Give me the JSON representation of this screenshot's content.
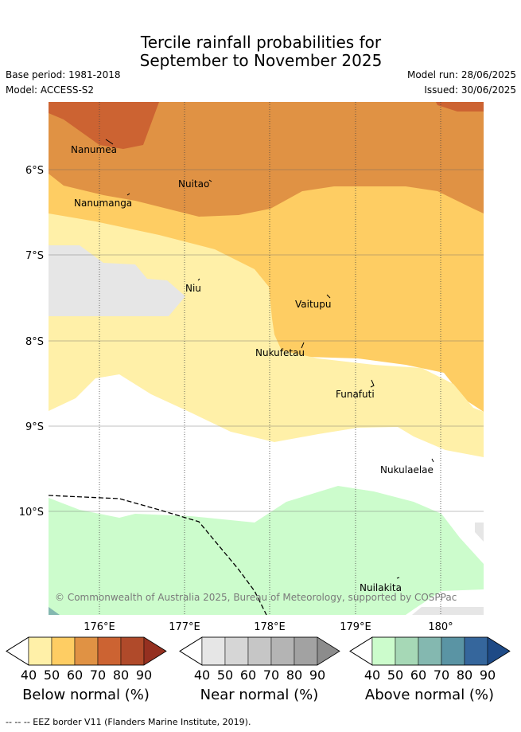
{
  "title": {
    "line1": "Tercile rainfall probabilities for",
    "line2": "September to November 2025"
  },
  "meta": {
    "base_period": "Base period: 1981-2018",
    "model": "Model: ACCESS-S2",
    "model_run": "Model run: 28/06/2025",
    "issued": "Issued: 30/06/2025"
  },
  "map": {
    "lat_labels": [
      "6°S",
      "7°S",
      "8°S",
      "9°S",
      "10°S"
    ],
    "lon_labels": [
      "176°E",
      "177°E",
      "178°E",
      "179°E",
      "180°"
    ],
    "places": [
      {
        "name": "Nanumea"
      },
      {
        "name": "Nuitao"
      },
      {
        "name": "Nanumanga"
      },
      {
        "name": "Niu"
      },
      {
        "name": "Vaitupu"
      },
      {
        "name": "Nukufetau"
      },
      {
        "name": "Funafuti"
      },
      {
        "name": "Nukulaelae"
      },
      {
        "name": "Nuilakita"
      }
    ],
    "copyright": "© Commonwealth of Australia 2025, Bureau of Meteorology, supported by COSPPac"
  },
  "legend": {
    "below": {
      "title": "Below normal (%)",
      "ticks": [
        "40",
        "50",
        "60",
        "70",
        "80",
        "90"
      ],
      "colors": [
        "#fff0a8",
        "#fecd63",
        "#e09244",
        "#cc6332",
        "#b04a2a",
        "#953020"
      ]
    },
    "near": {
      "title": "Near normal (%)",
      "ticks": [
        "40",
        "50",
        "60",
        "70",
        "80",
        "90"
      ],
      "colors": [
        "#e6e6e6",
        "#d6d6d6",
        "#c6c6c6",
        "#b4b4b4",
        "#a2a2a2",
        "#8c8c8c"
      ]
    },
    "above": {
      "title": "Above normal (%)",
      "ticks": [
        "40",
        "50",
        "60",
        "70",
        "80",
        "90"
      ],
      "colors": [
        "#ccfccc",
        "#a6d8b6",
        "#84b8b0",
        "#5a94a4",
        "#35669c",
        "#1e4a86"
      ]
    }
  },
  "footer": "--  --  -- EEZ border V11 (Flanders Marine Institute, 2019)."
}
